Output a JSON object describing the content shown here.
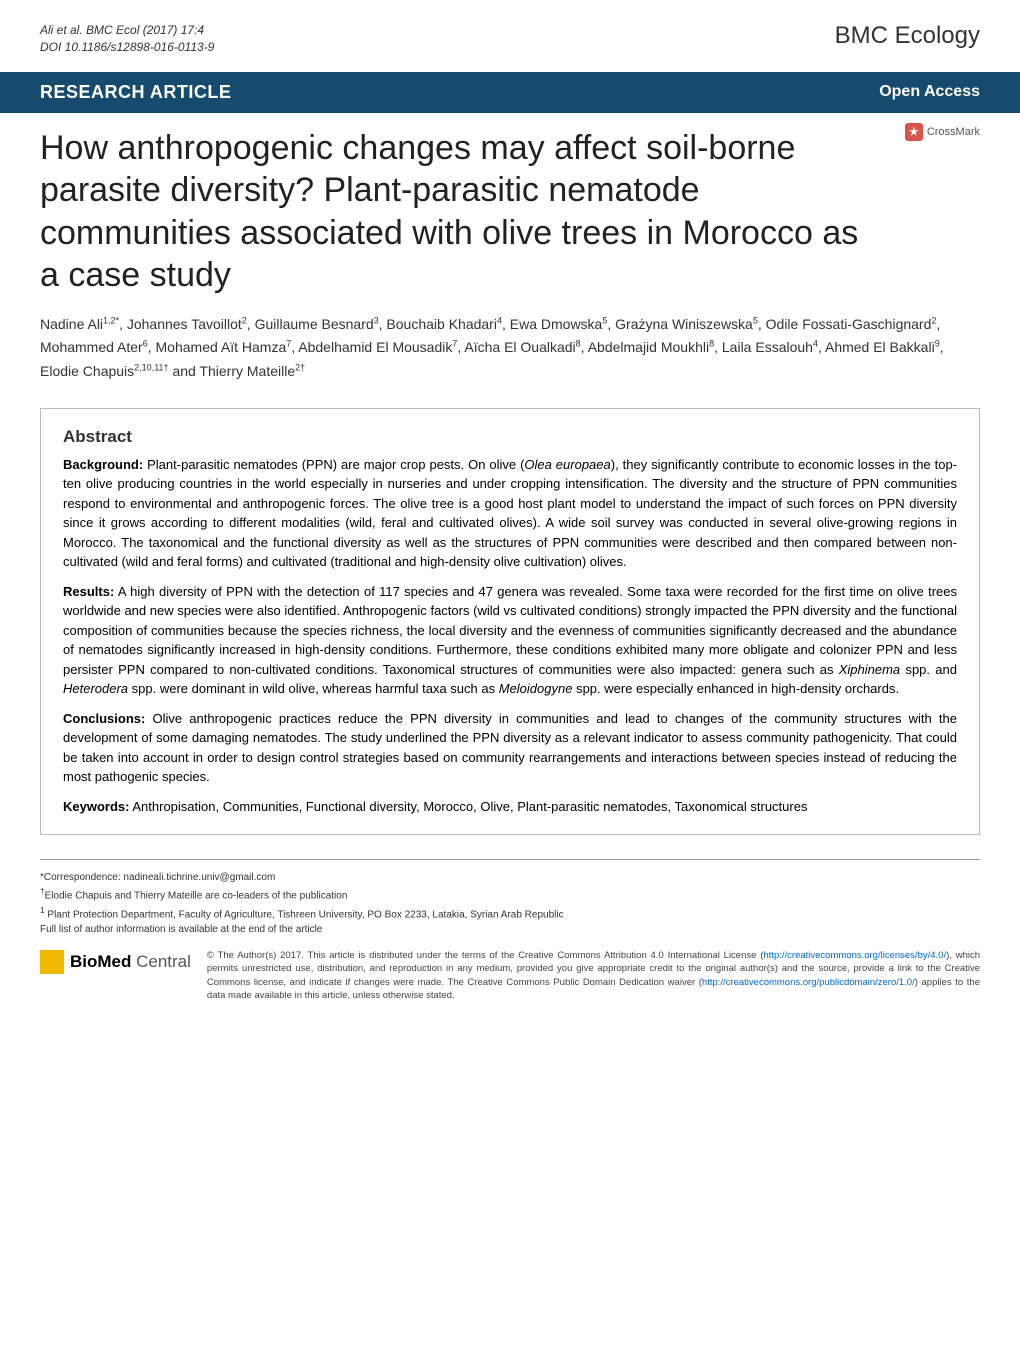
{
  "header": {
    "citation_line1": "Ali et al. BMC Ecol  (2017) 17:4",
    "citation_line2": "DOI 10.1186/s12898-016-0113-9",
    "journal": "BMC Ecology"
  },
  "article_bar": {
    "type": "RESEARCH ARTICLE",
    "open_access": "Open Access",
    "bg_color": "#164b6e"
  },
  "crossmark": {
    "label": "CrossMark"
  },
  "title": "How anthropogenic changes may affect soil-borne parasite diversity? Plant-parasitic nematode communities associated with olive trees in Morocco as a case study",
  "authors_html": "Nadine Ali<sup>1,2*</sup>, Johannes Tavoillot<sup>2</sup>, Guillaume Besnard<sup>3</sup>, Bouchaib Khadari<sup>4</sup>, Ewa Dmowska<sup>5</sup>, Grażyna Winiszewska<sup>5</sup>, Odile Fossati-Gaschignard<sup>2</sup>, Mohammed Ater<sup>6</sup>, Mohamed Aït Hamza<sup>7</sup>, Abdelhamid El Mousadik<sup>7</sup>, Aïcha El Oualkadi<sup>8</sup>, Abdelmajid Moukhli<sup>8</sup>, Laila Essalouh<sup>4</sup>, Ahmed El Bakkali<sup>9</sup>, Elodie Chapuis<sup>2,10,11†</sup> and Thierry Mateille<sup>2†</sup>",
  "abstract": {
    "heading": "Abstract",
    "background_label": "Background:",
    "background": "Plant-parasitic nematodes (PPN) are major crop pests. On olive (Olea europaea), they significantly contribute to economic losses in the top-ten olive producing countries in the world especially in nurseries and under cropping intensification. The diversity and the structure of PPN communities respond to environmental and anthropogenic forces. The olive tree is a good host plant model to understand the impact of such forces on PPN diversity since it grows according to different modalities (wild, feral and cultivated olives). A wide soil survey was conducted in several olive-growing regions in Morocco. The taxonomical and the functional diversity as well as the structures of PPN communities were described and then compared between non-cultivated (wild and feral forms) and cultivated (traditional and high-density olive cultivation) olives.",
    "results_label": "Results:",
    "results": "A high diversity of PPN with the detection of 117 species and 47 genera was revealed. Some taxa were recorded for the first time on olive trees worldwide and new species were also identified. Anthropogenic factors (wild vs cultivated conditions) strongly impacted the PPN diversity and the functional composition of communities because the species richness, the local diversity and the evenness of communities significantly decreased and the abundance of nematodes significantly increased in high-density conditions. Furthermore, these conditions exhibited many more obligate and colonizer PPN and less persister PPN compared to non-cultivated conditions. Taxonomical structures of communities were also impacted: genera such as Xiphinema spp. and Heterodera spp. were dominant in wild olive, whereas harmful taxa such as Meloidogyne spp. were especially enhanced in high-density orchards.",
    "conclusions_label": "Conclusions:",
    "conclusions": "Olive anthropogenic practices reduce the PPN diversity in communities and lead to changes of the community structures with the development of some damaging nematodes. The study underlined the PPN diversity as a relevant indicator to assess community pathogenicity. That could be taken into account in order to design control strategies based on community rearrangements and interactions between species instead of reducing the most pathogenic species.",
    "keywords_label": "Keywords:",
    "keywords": "Anthropisation, Communities, Functional diversity, Morocco, Olive, Plant-parasitic nematodes, Taxonomical structures"
  },
  "footer": {
    "correspondence": "*Correspondence:  nadineali.tichrine.univ@gmail.com",
    "coleaders": "†Elodie Chapuis and Thierry Mateille are co-leaders of the publication",
    "affiliation": "1 Plant Protection Department, Faculty of Agriculture, Tishreen University, PO Box 2233, Latakia, Syrian Arab Republic",
    "fulllist": "Full list of author information is available at the end of the article",
    "bmc_bio": "BioMed",
    "bmc_central": " Central",
    "license": "© The Author(s) 2017. This article is distributed under the terms of the Creative Commons Attribution 4.0 International License (http://creativecommons.org/licenses/by/4.0/), which permits unrestricted use, distribution, and reproduction in any medium, provided you give appropriate credit to the original author(s) and the source, provide a link to the Creative Commons license, and indicate if changes were made. The Creative Commons Public Domain Dedication waiver (http://creativecommons.org/publicdomain/zero/1.0/) applies to the data made available in this article, unless otherwise stated."
  },
  "colors": {
    "article_bar": "#164b6e",
    "link": "#0066cc",
    "bmc_yellow": "#f0b800",
    "crossmark": "#d9534f"
  }
}
